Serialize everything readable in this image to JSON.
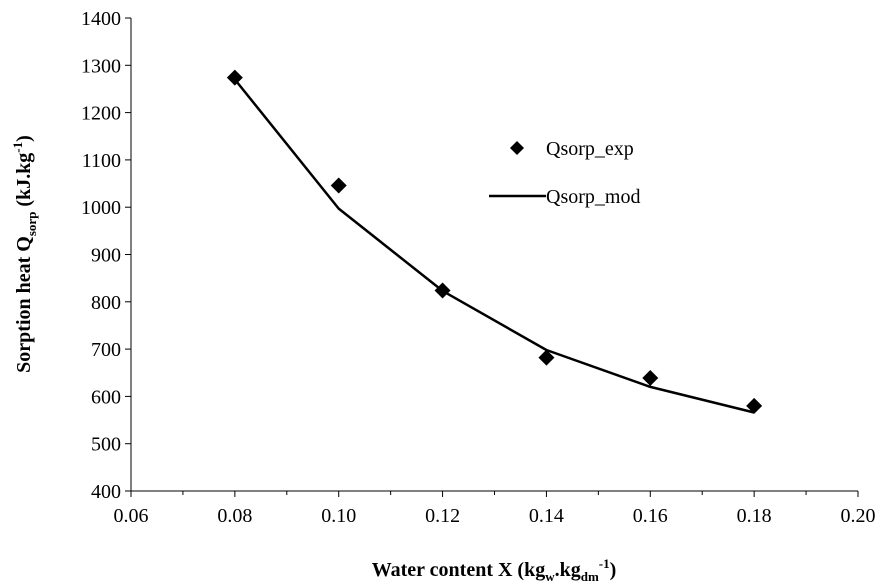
{
  "chart_data": {
    "type": "scatter",
    "xlabel": {
      "main": "Water content X (kg",
      "sub1": "w",
      "mid": ".kg",
      "sub2": "dm",
      "sup": "-1",
      "end": ")"
    },
    "ylabel": {
      "main": "Sorption heat Q",
      "sub": "sorp",
      "mid": " (kJ.kg",
      "sup": "-1",
      "end": ")"
    },
    "xlim": [
      0.06,
      0.2
    ],
    "ylim": [
      400,
      1400
    ],
    "x_ticks": [
      "0.06",
      "0.08",
      "0.10",
      "0.12",
      "0.14",
      "0.16",
      "0.18",
      "0.20"
    ],
    "y_ticks": [
      "400",
      "500",
      "600",
      "700",
      "800",
      "900",
      "1000",
      "1100",
      "1200",
      "1300",
      "1400"
    ],
    "grid": false,
    "legend_position": "right-upper",
    "series": [
      {
        "name": "Qsorp_exp",
        "style": "marker-diamond",
        "color": "#000000",
        "points": [
          {
            "x": 0.08,
            "y": 1274
          },
          {
            "x": 0.1,
            "y": 1046
          },
          {
            "x": 0.12,
            "y": 824
          },
          {
            "x": 0.14,
            "y": 682
          },
          {
            "x": 0.16,
            "y": 639
          },
          {
            "x": 0.18,
            "y": 580
          }
        ]
      },
      {
        "name": "Qsorp_mod",
        "style": "line",
        "color": "#000000",
        "points": [
          {
            "x": 0.08,
            "y": 1270
          },
          {
            "x": 0.1,
            "y": 997
          },
          {
            "x": 0.12,
            "y": 823
          },
          {
            "x": 0.14,
            "y": 698
          },
          {
            "x": 0.16,
            "y": 620
          },
          {
            "x": 0.18,
            "y": 566
          }
        ]
      }
    ]
  }
}
